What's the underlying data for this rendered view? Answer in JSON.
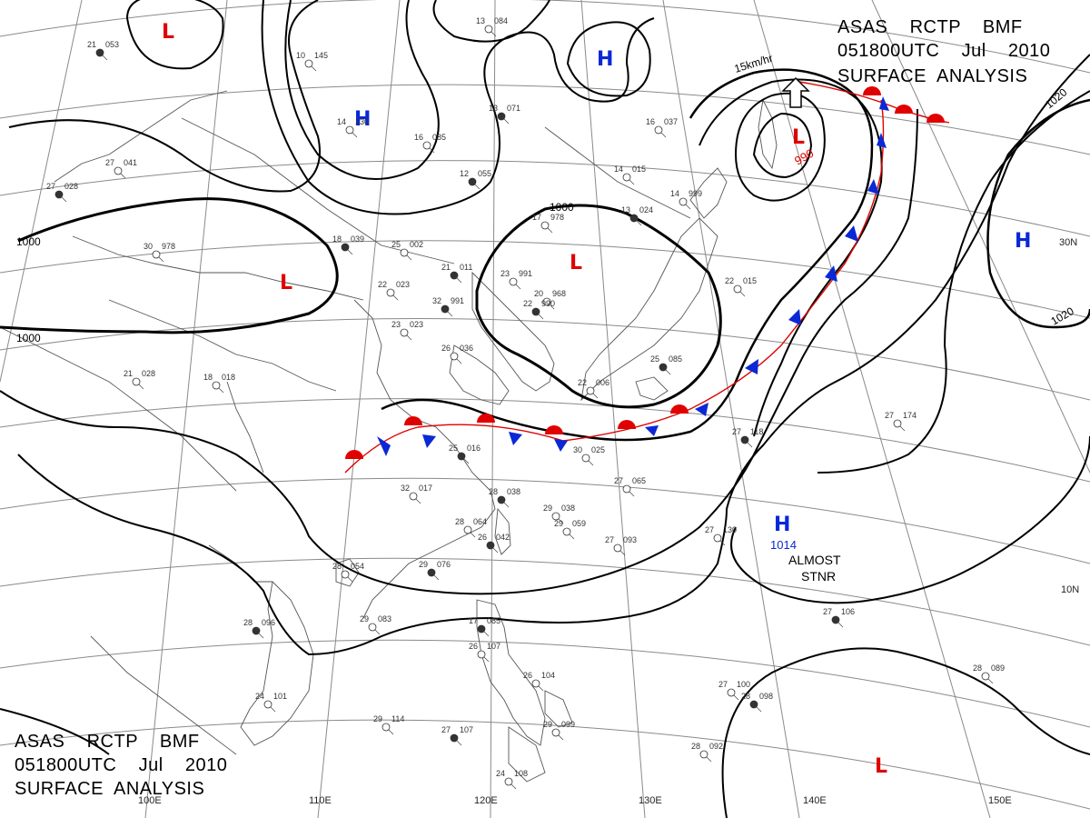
{
  "header_top_right": {
    "line1": "ASAS    RCTP    BMF",
    "line2": "051800UTC    Jul    2010",
    "line3": "SURFACE  ANALYSIS"
  },
  "header_bottom_left": {
    "line1": "ASAS    RCTP    BMF",
    "line2": "051800UTC    Jul    2010",
    "line3": "SURFACE  ANALYSIS"
  },
  "longitude_labels": [
    "100E",
    "110E",
    "120E",
    "130E",
    "140E",
    "150E"
  ],
  "latitude_labels": [
    "30N",
    "10N"
  ],
  "isobar_labels": [
    "1000",
    "1000",
    "1000",
    "1020",
    "1020"
  ],
  "pressure_centers": [
    {
      "type": "L",
      "color": "#e00000"
    },
    {
      "type": "H",
      "color": "#0a28d6"
    },
    {
      "type": "H",
      "color": "#0a28d6"
    },
    {
      "type": "L",
      "color": "#e00000"
    },
    {
      "type": "L",
      "color": "#e00000"
    },
    {
      "type": "L",
      "color": "#e00000",
      "value": "990"
    },
    {
      "type": "H",
      "color": "#0a28d6"
    },
    {
      "type": "H",
      "color": "#0a28d6",
      "value": "1014"
    },
    {
      "type": "L",
      "color": "#e00000"
    }
  ],
  "motion_note": "15km/hr",
  "stationary_note": {
    "line1": "ALMOST",
    "line2": "STNR"
  },
  "station_plots": [
    {
      "temp": "21",
      "press": "053"
    },
    {
      "temp": "10",
      "press": "145"
    },
    {
      "temp": "13",
      "press": "084"
    },
    {
      "temp": "13",
      "press": "071"
    },
    {
      "temp": "16",
      "press": "085"
    },
    {
      "temp": "14",
      "press": "130"
    },
    {
      "temp": "12",
      "press": "055"
    },
    {
      "temp": "14",
      "press": "015"
    },
    {
      "temp": "16",
      "press": "037"
    },
    {
      "temp": "13",
      "press": "024"
    },
    {
      "temp": "14",
      "press": "999"
    },
    {
      "temp": "17",
      "press": "978"
    },
    {
      "temp": "18",
      "press": "039"
    },
    {
      "temp": "25",
      "press": "002"
    },
    {
      "temp": "22",
      "press": "023"
    },
    {
      "temp": "21",
      "press": "011"
    },
    {
      "temp": "23",
      "press": "991"
    },
    {
      "temp": "30",
      "press": "978"
    },
    {
      "temp": "32",
      "press": "991"
    },
    {
      "temp": "23",
      "press": "023"
    },
    {
      "temp": "20",
      "press": "968"
    },
    {
      "temp": "22",
      "press": "990"
    },
    {
      "temp": "22",
      "press": "015"
    },
    {
      "temp": "27",
      "press": "041"
    },
    {
      "temp": "27",
      "press": "028"
    },
    {
      "temp": "21",
      "press": "028"
    },
    {
      "temp": "18",
      "press": "018"
    },
    {
      "temp": "25",
      "press": "016"
    },
    {
      "temp": "30",
      "press": "025"
    },
    {
      "temp": "32",
      "press": "017"
    },
    {
      "temp": "28",
      "press": "038"
    },
    {
      "temp": "29",
      "press": "038"
    },
    {
      "temp": "29",
      "press": "059"
    },
    {
      "temp": "26",
      "press": "042"
    },
    {
      "temp": "27",
      "press": "065"
    },
    {
      "temp": "27",
      "press": "093"
    },
    {
      "temp": "29",
      "press": "076"
    },
    {
      "temp": "28",
      "press": "054"
    },
    {
      "temp": "29",
      "press": "083"
    },
    {
      "temp": "28",
      "press": "096"
    },
    {
      "temp": "24",
      "press": "101"
    },
    {
      "temp": "29",
      "press": "114"
    },
    {
      "temp": "27",
      "press": "107"
    },
    {
      "temp": "29",
      "press": "099"
    },
    {
      "temp": "24",
      "press": "108"
    },
    {
      "temp": "27",
      "press": "118"
    },
    {
      "temp": "27",
      "press": "130"
    },
    {
      "temp": "27",
      "press": "174"
    },
    {
      "temp": "27",
      "press": "106"
    },
    {
      "temp": "28",
      "press": "089"
    },
    {
      "temp": "27",
      "press": "100"
    },
    {
      "temp": "28",
      "press": "098"
    },
    {
      "temp": "28",
      "press": "092"
    },
    {
      "temp": "22",
      "press": "006"
    },
    {
      "temp": "25",
      "press": "085"
    },
    {
      "temp": "26",
      "press": "036"
    },
    {
      "temp": "26",
      "press": "104"
    },
    {
      "temp": "17",
      "press": "085"
    },
    {
      "temp": "26",
      "press": "107"
    },
    {
      "temp": "28",
      "press": "064"
    }
  ],
  "colors": {
    "isobar": "#000000",
    "coast": "#555555",
    "grid": "#777777",
    "warm_front": "#e00000",
    "cold_front": "#0a28d6",
    "low": "#e00000",
    "high": "#0a28d6"
  }
}
